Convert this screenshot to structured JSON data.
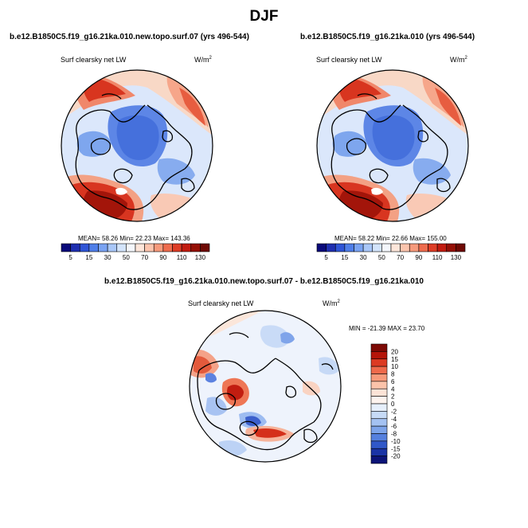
{
  "figure": {
    "title": "DJF"
  },
  "colors": {
    "coast": "#000000",
    "ocean_outline": "#000000"
  },
  "chart_data": [
    {
      "type": "heatmap",
      "projection": "north-polar-stereographic",
      "title": "b.e12.B1850C5.f19_g16.21ka.010.new.topo.surf.07 (yrs 496-544)",
      "field": "Surf clearsky net LW",
      "units": "W/m",
      "units_sup": "2",
      "stats": "MEAN= 58.26 Min= 22.23 Max= 143.36",
      "colorbar": {
        "orientation": "horizontal",
        "levels": [
          5,
          10,
          15,
          20,
          30,
          40,
          50,
          60,
          70,
          80,
          90,
          100,
          110,
          120,
          130
        ],
        "tick_labels": [
          "5",
          "15",
          "30",
          "50",
          "70",
          "90",
          "110",
          "130"
        ],
        "colors": [
          "#0a0a7a",
          "#1f2fb0",
          "#2f55d6",
          "#4f7ee8",
          "#7aa3f2",
          "#a9c7f8",
          "#d3e4fb",
          "#f4f7fc",
          "#fde6da",
          "#fbc4ad",
          "#f69a7c",
          "#ee6c4e",
          "#de3d26",
          "#c21c10",
          "#951006",
          "#6f0a04"
        ]
      }
    },
    {
      "type": "heatmap",
      "projection": "north-polar-stereographic",
      "title": "b.e12.B1850C5.f19_g16.21ka.010 (yrs 496-544)",
      "field": "Surf clearsky net LW",
      "units": "W/m",
      "units_sup": "2",
      "stats": "MEAN= 58.22 Min= 22.66 Max= 155.00",
      "colorbar": {
        "orientation": "horizontal",
        "levels": [
          5,
          10,
          15,
          20,
          30,
          40,
          50,
          60,
          70,
          80,
          90,
          100,
          110,
          120,
          130
        ],
        "tick_labels": [
          "5",
          "15",
          "30",
          "50",
          "70",
          "90",
          "110",
          "130"
        ],
        "colors": [
          "#0a0a7a",
          "#1f2fb0",
          "#2f55d6",
          "#4f7ee8",
          "#7aa3f2",
          "#a9c7f8",
          "#d3e4fb",
          "#f4f7fc",
          "#fde6da",
          "#fbc4ad",
          "#f69a7c",
          "#ee6c4e",
          "#de3d26",
          "#c21c10",
          "#951006",
          "#6f0a04"
        ]
      }
    },
    {
      "type": "heatmap",
      "projection": "north-polar-stereographic",
      "title": "b.e12.B1850C5.f19_g16.21ka.010.new.topo.surf.07 - b.e12.B1850C5.f19_g16.21ka.010",
      "field": "Surf clearsky net LW",
      "units": "W/m",
      "units_sup": "2",
      "stats": "MIN = -21.39 MAX = 23.70",
      "colorbar": {
        "orientation": "vertical",
        "levels": [
          -20,
          -15,
          -10,
          -8,
          -6,
          -4,
          -2,
          0,
          2,
          4,
          6,
          8,
          10,
          15,
          20
        ],
        "tick_labels": [
          "20",
          "15",
          "10",
          "8",
          "6",
          "4",
          "2",
          "0",
          "-2",
          "-4",
          "-6",
          "-8",
          "-10",
          "-15",
          "-20"
        ],
        "colors_top_to_bottom": [
          "#7d0a05",
          "#b5150a",
          "#dc3a22",
          "#ef6a4b",
          "#f79a7a",
          "#fbc3aa",
          "#fde3d6",
          "#fdf3ee",
          "#e6effb",
          "#c7dbf7",
          "#a4c2f2",
          "#7da4ea",
          "#5580de",
          "#3058c9",
          "#1a34a6",
          "#0c1478"
        ]
      }
    }
  ]
}
